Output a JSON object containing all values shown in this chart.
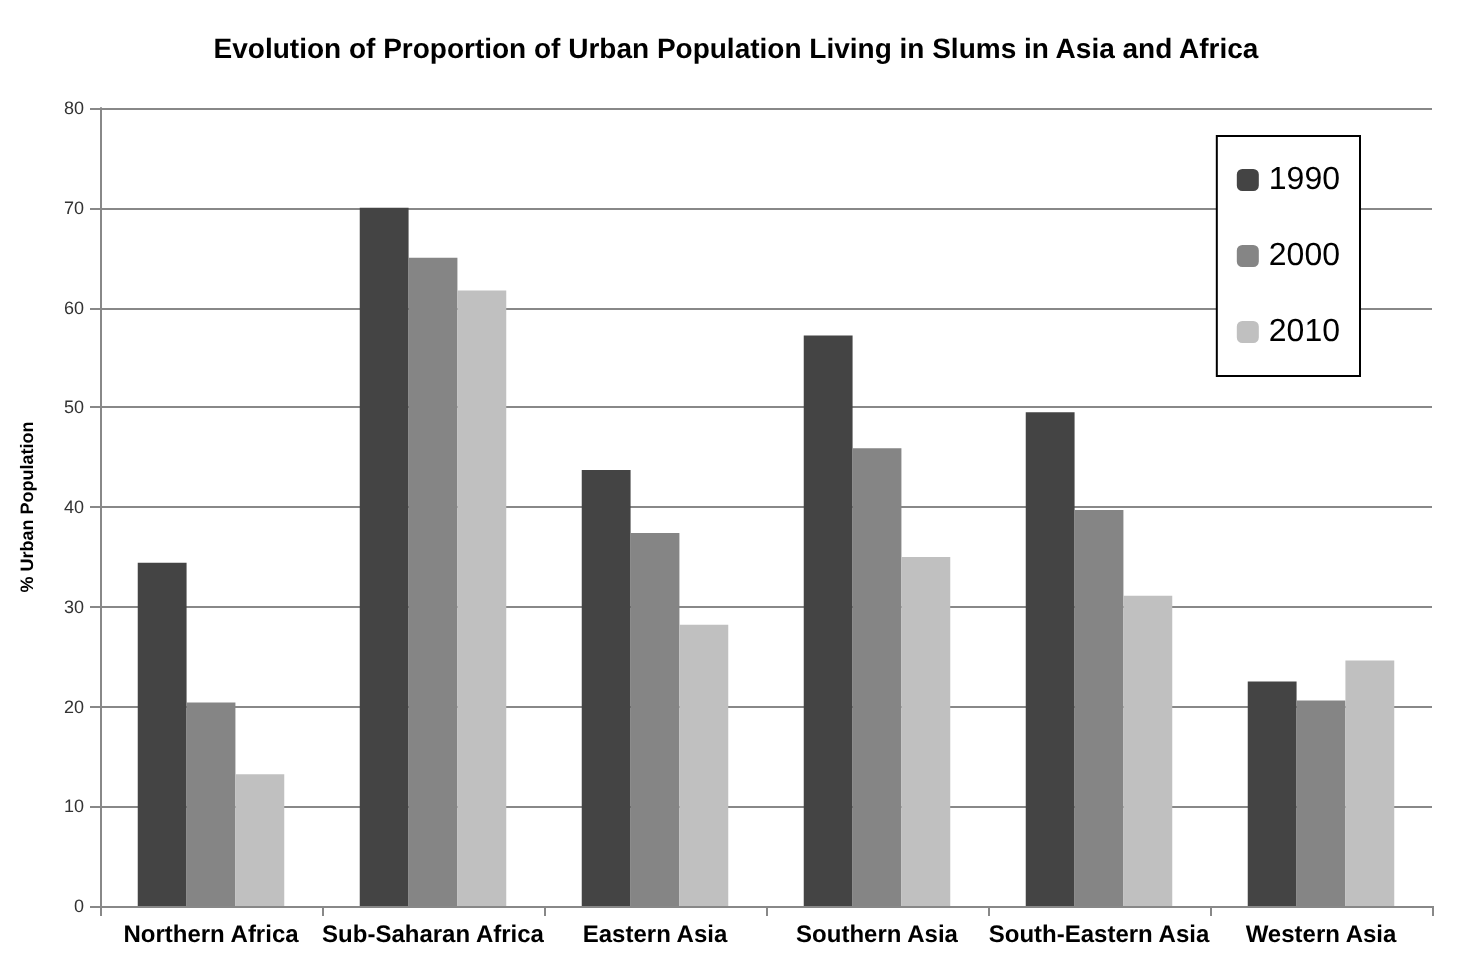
{
  "chart_data": {
    "type": "bar",
    "title": "Evolution of Proportion of Urban Population Living in Slums in Asia and Africa",
    "ylabel": "% Urban Population",
    "categories": [
      "Northern Africa",
      "Sub-Saharan Africa",
      "Eastern Asia",
      "Southern Asia",
      "South-Eastern Asia",
      "Western Asia"
    ],
    "series": [
      {
        "name": "1990",
        "color": "#444444",
        "values": [
          34.4,
          70.0,
          43.7,
          57.2,
          49.5,
          22.5
        ]
      },
      {
        "name": "2000",
        "color": "#858585",
        "values": [
          20.4,
          65.0,
          37.4,
          45.9,
          39.7,
          20.6
        ]
      },
      {
        "name": "2010",
        "color": "#c0c0c0",
        "values": [
          13.2,
          61.7,
          28.2,
          35.0,
          31.1,
          24.6
        ]
      }
    ],
    "ylim": [
      0,
      80
    ],
    "yticks": [
      0,
      10,
      20,
      30,
      40,
      50,
      60,
      70,
      80
    ],
    "grid": "y",
    "legend": "top right"
  }
}
